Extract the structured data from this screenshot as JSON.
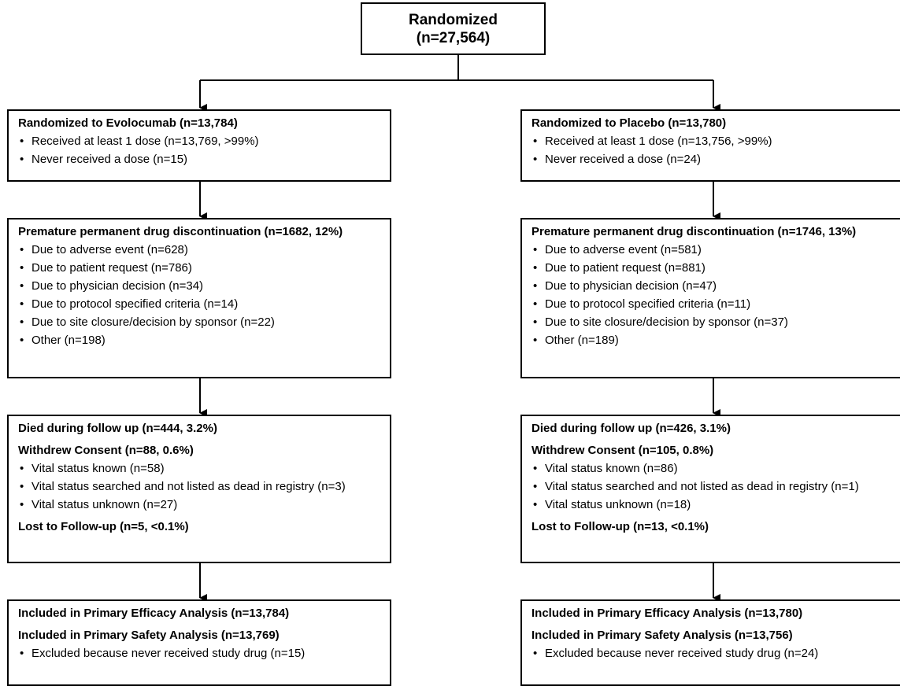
{
  "root": {
    "title": "Randomized",
    "count": "(n=27,564)"
  },
  "arms": {
    "left": {
      "randomized": {
        "heading": "Randomized to Evolocumab (n=13,784)",
        "items": [
          "Received at least 1 dose (n=13,769, >99%)",
          "Never received a dose (n=15)"
        ]
      },
      "discontinuation": {
        "heading": "Premature permanent drug discontinuation (n=1682, 12%)",
        "items": [
          "Due to adverse event (n=628)",
          "Due to patient request (n=786)",
          "Due to physician decision (n=34)",
          "Due to protocol specified criteria (n=14)",
          "Due to site closure/decision by sponsor (n=22)",
          "Other (n=198)"
        ]
      },
      "followup": {
        "died": "Died during follow up (n=444, 3.2%)",
        "withdrew": "Withdrew Consent (n=88, 0.6%)",
        "items": [
          "Vital status known (n=58)",
          "Vital status searched and not listed as dead in registry (n=3)",
          "Vital status unknown (n=27)"
        ],
        "lost": "Lost to Follow-up (n=5, <0.1%)"
      },
      "analysis": {
        "efficacy": "Included in Primary Efficacy Analysis (n=13,784)",
        "safety": "Included in Primary Safety Analysis (n=13,769)",
        "items": [
          "Excluded because never received study drug (n=15)"
        ]
      }
    },
    "right": {
      "randomized": {
        "heading": "Randomized to Placebo (n=13,780)",
        "items": [
          "Received at least 1 dose (n=13,756, >99%)",
          "Never received a dose (n=24)"
        ]
      },
      "discontinuation": {
        "heading": "Premature permanent drug discontinuation (n=1746, 13%)",
        "items": [
          "Due to adverse event (n=581)",
          "Due to patient request (n=881)",
          "Due to physician decision (n=47)",
          "Due to protocol specified criteria (n=11)",
          "Due to site closure/decision by sponsor (n=37)",
          "Other (n=189)"
        ]
      },
      "followup": {
        "died": "Died during follow up (n=426, 3.1%)",
        "withdrew": "Withdrew Consent (n=105, 0.8%)",
        "items": [
          "Vital status known (n=86)",
          "Vital status searched and not listed as dead in registry (n=1)",
          "Vital status unknown (n=18)"
        ],
        "lost": "Lost to Follow-up (n=13, <0.1%)"
      },
      "analysis": {
        "efficacy": "Included in Primary Efficacy Analysis (n=13,780)",
        "safety": "Included in Primary Safety Analysis (n=13,756)",
        "items": [
          "Excluded because never received study drug (n=24)"
        ]
      }
    }
  }
}
